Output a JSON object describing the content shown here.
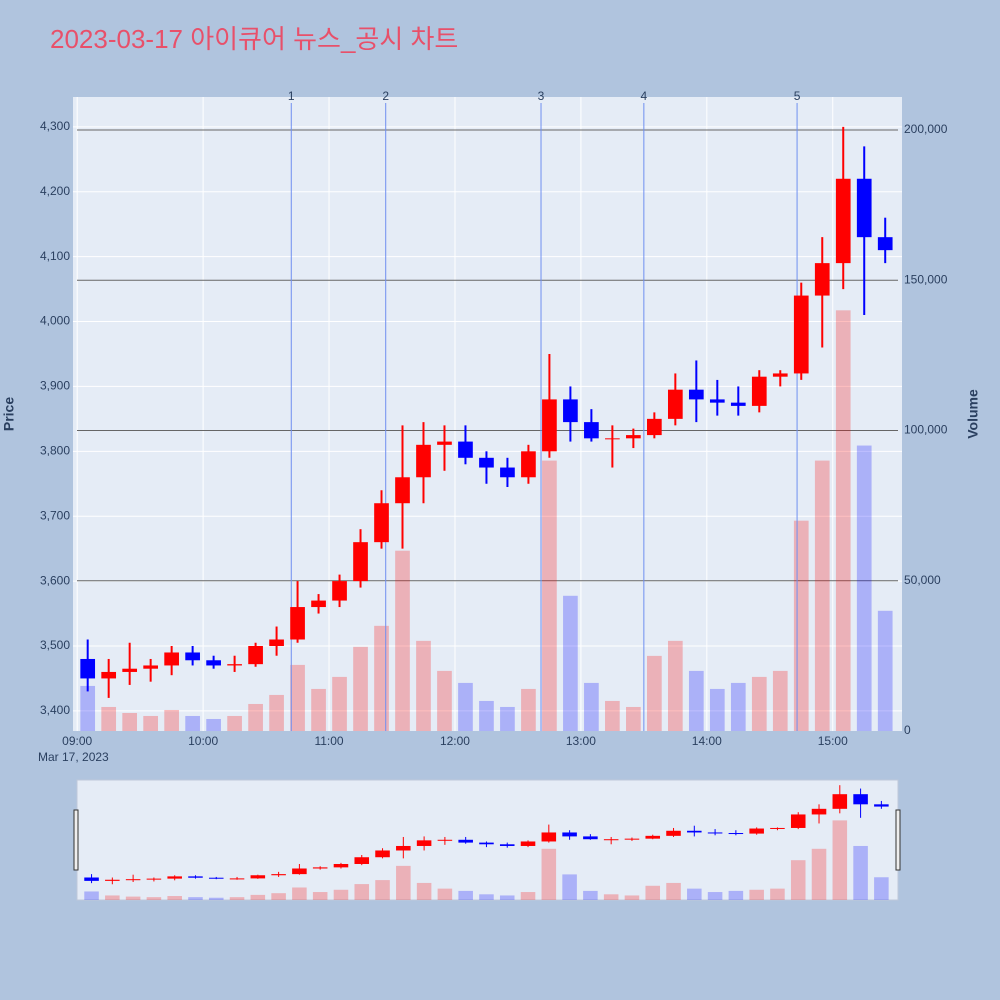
{
  "chart_data": {
    "type": "candlestick",
    "title": "2023-03-17 아이큐어 뉴스_공시 차트",
    "ylabel": "Price",
    "y2label": "Volume",
    "x_sublabel": "Mar 17, 2023",
    "x": [
      "09:00",
      "09:10",
      "09:20",
      "09:30",
      "09:40",
      "09:50",
      "10:00",
      "10:10",
      "10:20",
      "10:30",
      "10:40",
      "10:50",
      "11:00",
      "11:10",
      "11:20",
      "11:30",
      "11:40",
      "11:50",
      "12:00",
      "12:10",
      "12:20",
      "12:30",
      "12:40",
      "12:50",
      "13:00",
      "13:10",
      "13:20",
      "13:30",
      "13:40",
      "13:50",
      "14:00",
      "14:10",
      "14:20",
      "14:30",
      "14:40",
      "14:50",
      "15:00",
      "15:10",
      "15:20"
    ],
    "open": [
      3480,
      3450,
      3460,
      3465,
      3470,
      3490,
      3478,
      3470,
      3472,
      3500,
      3510,
      3560,
      3570,
      3600,
      3660,
      3720,
      3760,
      3810,
      3815,
      3790,
      3775,
      3760,
      3800,
      3880,
      3845,
      3820,
      3820,
      3825,
      3850,
      3895,
      3880,
      3875,
      3870,
      3915,
      3920,
      4040,
      4090,
      4220,
      4130
    ],
    "high": [
      3510,
      3480,
      3505,
      3480,
      3500,
      3500,
      3485,
      3485,
      3505,
      3530,
      3600,
      3580,
      3610,
      3680,
      3740,
      3840,
      3845,
      3840,
      3840,
      3800,
      3790,
      3810,
      3950,
      3900,
      3865,
      3840,
      3835,
      3860,
      3920,
      3940,
      3910,
      3900,
      3925,
      3925,
      4060,
      4130,
      4300,
      4270,
      4160
    ],
    "low": [
      3430,
      3420,
      3440,
      3445,
      3455,
      3470,
      3465,
      3460,
      3468,
      3485,
      3505,
      3550,
      3560,
      3590,
      3650,
      3650,
      3720,
      3770,
      3780,
      3750,
      3745,
      3750,
      3790,
      3815,
      3815,
      3775,
      3805,
      3820,
      3840,
      3845,
      3855,
      3855,
      3860,
      3900,
      3910,
      3960,
      4050,
      4010,
      4090
    ],
    "close": [
      3450,
      3460,
      3465,
      3470,
      3490,
      3478,
      3470,
      3472,
      3500,
      3510,
      3560,
      3570,
      3600,
      3660,
      3720,
      3760,
      3810,
      3815,
      3790,
      3775,
      3760,
      3800,
      3880,
      3845,
      3820,
      3820,
      3825,
      3850,
      3895,
      3880,
      3875,
      3870,
      3915,
      3920,
      4040,
      4090,
      4220,
      4130,
      4110
    ],
    "volume": [
      15000,
      8000,
      6000,
      5000,
      7000,
      5000,
      4000,
      5000,
      9000,
      12000,
      22000,
      14000,
      18000,
      28000,
      35000,
      60000,
      30000,
      20000,
      16000,
      10000,
      8000,
      14000,
      90000,
      45000,
      16000,
      10000,
      8000,
      25000,
      30000,
      20000,
      14000,
      16000,
      18000,
      20000,
      70000,
      90000,
      140000,
      95000,
      40000
    ],
    "increasing_color": "#ff0000",
    "decreasing_color": "#0000ff",
    "news": [
      {
        "label": "1",
        "time": "10:42"
      },
      {
        "label": "2",
        "time": "11:27"
      },
      {
        "label": "3",
        "time": "12:41"
      },
      {
        "label": "4",
        "time": "13:30"
      },
      {
        "label": "5",
        "time": "14:43"
      }
    ],
    "xlim": [
      "08:58",
      "15:33"
    ],
    "xticks": [
      "09:00",
      "10:00",
      "11:00",
      "12:00",
      "13:00",
      "14:00",
      "15:00"
    ],
    "ylim": [
      3369,
      4346
    ],
    "yticks": [
      {
        "value": 3400,
        "label": "3,400"
      },
      {
        "value": 3500,
        "label": "3,500"
      },
      {
        "value": 3600,
        "label": "3,600"
      },
      {
        "value": 3700,
        "label": "3,700"
      },
      {
        "value": 3800,
        "label": "3,800"
      },
      {
        "value": 3900,
        "label": "3,900"
      },
      {
        "value": 4000,
        "label": "4,000"
      },
      {
        "value": 4100,
        "label": "4,100"
      },
      {
        "value": 4200,
        "label": "4,200"
      },
      {
        "value": 4300,
        "label": "4,300"
      }
    ],
    "y2lim": [
      0,
      211000
    ],
    "y2ticks": [
      0,
      {
        "value": 50000,
        "label": "50,000"
      },
      {
        "value": 100000,
        "label": "100,000"
      },
      {
        "value": 150000,
        "label": "150,000"
      },
      {
        "value": 200000,
        "label": "200,000"
      }
    ],
    "grid": true
  }
}
